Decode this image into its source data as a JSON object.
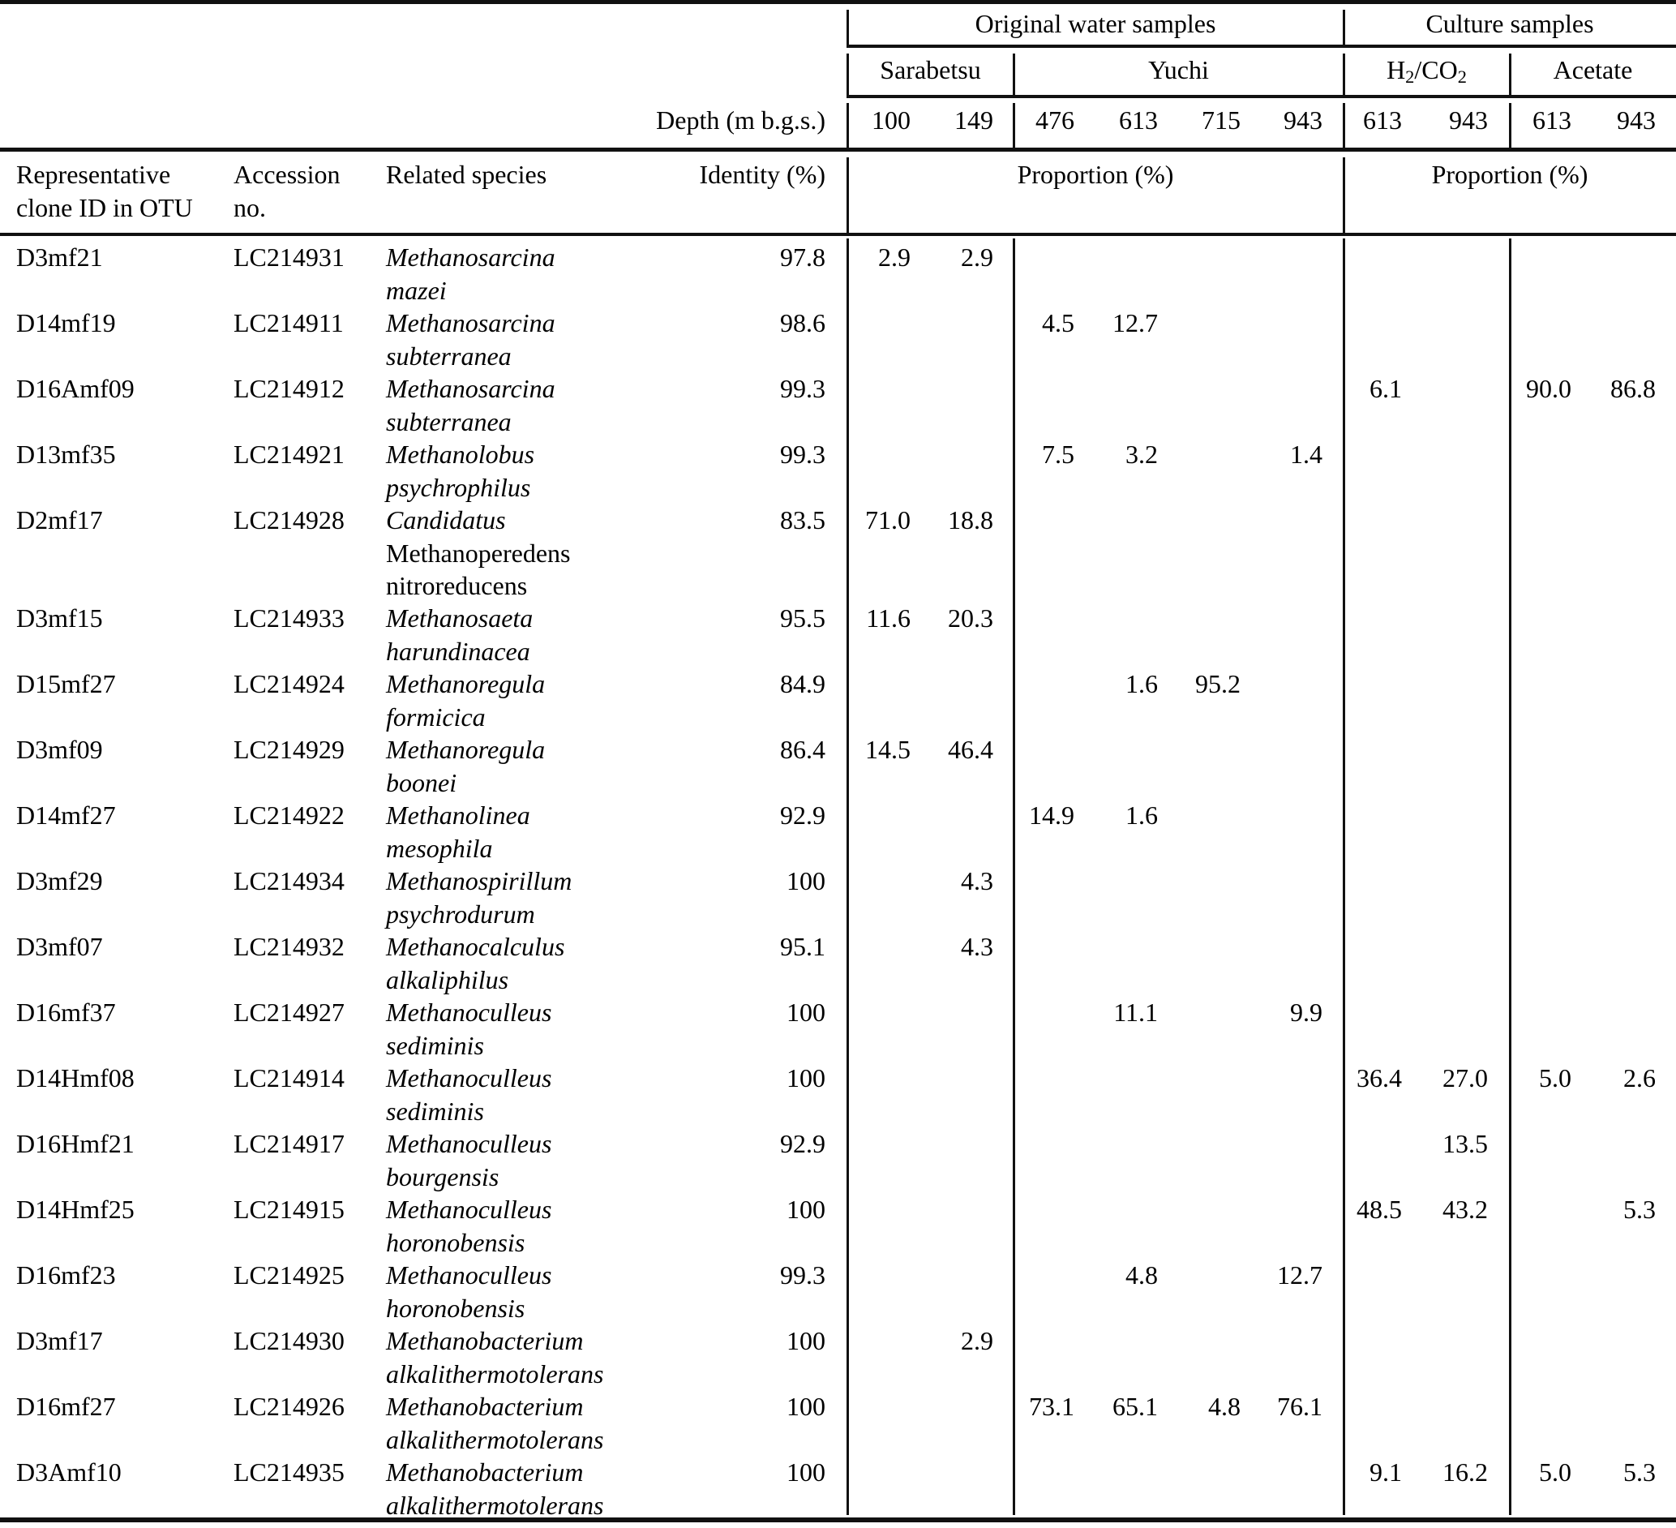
{
  "table": {
    "groups": {
      "water": "Original water samples",
      "culture": "Culture samples"
    },
    "subgroups": [
      {
        "label": "Sarabetsu"
      },
      {
        "label": "Yuchi"
      },
      {
        "label": "H2/CO2",
        "parts": [
          [
            "H",
            false
          ],
          [
            "2",
            true
          ],
          [
            "/CO",
            false
          ],
          [
            "2",
            true
          ]
        ]
      },
      {
        "label": "Acetate"
      }
    ],
    "depth_label": "Depth (m b.g.s.)",
    "depths": [
      "100",
      "149",
      "476",
      "613",
      "715",
      "943",
      "613",
      "943",
      "613",
      "943"
    ],
    "headers": {
      "clone_line1": "Representative",
      "clone_line2": "clone ID in OTU",
      "accession_line1": "Accession",
      "accession_line2": "no.",
      "species": "Related species",
      "identity": "Identity (%)",
      "proportion_water": "Proportion (%)",
      "proportion_culture": "Proportion (%)"
    },
    "rows": [
      {
        "id": "D3mf21",
        "accession": "LC214931",
        "species": [
          [
            "Methanosarcina",
            1
          ],
          [
            "mazei",
            1
          ]
        ],
        "identity": "97.8",
        "values": [
          "2.9",
          "2.9",
          "",
          "",
          "",
          "",
          "",
          "",
          "",
          ""
        ]
      },
      {
        "id": "D14mf19",
        "accession": "LC214911",
        "species": [
          [
            "Methanosarcina",
            1
          ],
          [
            "subterranea",
            1
          ]
        ],
        "identity": "98.6",
        "values": [
          "",
          "",
          "4.5",
          "12.7",
          "",
          "",
          "",
          "",
          "",
          ""
        ]
      },
      {
        "id": "D16Amf09",
        "accession": "LC214912",
        "species": [
          [
            "Methanosarcina",
            1
          ],
          [
            "subterranea",
            1
          ]
        ],
        "identity": "99.3",
        "values": [
          "",
          "",
          "",
          "",
          "",
          "",
          "6.1",
          "",
          "90.0",
          "86.8"
        ]
      },
      {
        "id": "D13mf35",
        "accession": "LC214921",
        "species": [
          [
            "Methanolobus",
            1
          ],
          [
            "psychrophilus",
            1
          ]
        ],
        "identity": "99.3",
        "values": [
          "",
          "",
          "7.5",
          "3.2",
          "",
          "1.4",
          "",
          "",
          "",
          ""
        ]
      },
      {
        "id": "D2mf17",
        "accession": "LC214928",
        "species": [
          [
            "Candidatus",
            1
          ],
          [
            "Methanoperedens",
            0
          ],
          [
            "nitroreducens",
            0
          ]
        ],
        "identity": "83.5",
        "values": [
          "71.0",
          "18.8",
          "",
          "",
          "",
          "",
          "",
          "",
          "",
          ""
        ]
      },
      {
        "id": "D3mf15",
        "accession": "LC214933",
        "species": [
          [
            "Methanosaeta",
            1
          ],
          [
            "harundinacea",
            1
          ]
        ],
        "identity": "95.5",
        "values": [
          "11.6",
          "20.3",
          "",
          "",
          "",
          "",
          "",
          "",
          "",
          ""
        ]
      },
      {
        "id": "D15mf27",
        "accession": "LC214924",
        "species": [
          [
            "Methanoregula",
            1
          ],
          [
            "formicica",
            1
          ]
        ],
        "identity": "84.9",
        "values": [
          "",
          "",
          "",
          "1.6",
          "95.2",
          "",
          "",
          "",
          "",
          ""
        ]
      },
      {
        "id": "D3mf09",
        "accession": "LC214929",
        "species": [
          [
            "Methanoregula",
            1
          ],
          [
            "boonei",
            1
          ]
        ],
        "identity": "86.4",
        "values": [
          "14.5",
          "46.4",
          "",
          "",
          "",
          "",
          "",
          "",
          "",
          ""
        ]
      },
      {
        "id": "D14mf27",
        "accession": "LC214922",
        "species": [
          [
            "Methanolinea",
            1
          ],
          [
            "mesophila",
            1
          ]
        ],
        "identity": "92.9",
        "values": [
          "",
          "",
          "14.9",
          "1.6",
          "",
          "",
          "",
          "",
          "",
          ""
        ]
      },
      {
        "id": "D3mf29",
        "accession": "LC214934",
        "species": [
          [
            "Methanospirillum",
            1
          ],
          [
            "psychrodurum",
            1
          ]
        ],
        "identity": "100",
        "values": [
          "",
          "4.3",
          "",
          "",
          "",
          "",
          "",
          "",
          "",
          ""
        ]
      },
      {
        "id": "D3mf07",
        "accession": "LC214932",
        "species": [
          [
            "Methanocalculus",
            1
          ],
          [
            "alkaliphilus",
            1
          ]
        ],
        "identity": "95.1",
        "values": [
          "",
          "4.3",
          "",
          "",
          "",
          "",
          "",
          "",
          "",
          ""
        ]
      },
      {
        "id": "D16mf37",
        "accession": "LC214927",
        "species": [
          [
            "Methanoculleus",
            1
          ],
          [
            "sediminis",
            1
          ]
        ],
        "identity": "100",
        "values": [
          "",
          "",
          "",
          "11.1",
          "",
          "9.9",
          "",
          "",
          "",
          ""
        ]
      },
      {
        "id": "D14Hmf08",
        "accession": "LC214914",
        "species": [
          [
            "Methanoculleus",
            1
          ],
          [
            "sediminis",
            1
          ]
        ],
        "identity": "100",
        "values": [
          "",
          "",
          "",
          "",
          "",
          "",
          "36.4",
          "27.0",
          "5.0",
          "2.6"
        ]
      },
      {
        "id": "D16Hmf21",
        "accession": "LC214917",
        "species": [
          [
            "Methanoculleus",
            1
          ],
          [
            "bourgensis",
            1
          ]
        ],
        "identity": "92.9",
        "values": [
          "",
          "",
          "",
          "",
          "",
          "",
          "",
          "13.5",
          "",
          ""
        ]
      },
      {
        "id": "D14Hmf25",
        "accession": "LC214915",
        "species": [
          [
            "Methanoculleus",
            1
          ],
          [
            "horonobensis",
            1
          ]
        ],
        "identity": "100",
        "values": [
          "",
          "",
          "",
          "",
          "",
          "",
          "48.5",
          "43.2",
          "",
          "5.3"
        ]
      },
      {
        "id": "D16mf23",
        "accession": "LC214925",
        "species": [
          [
            "Methanoculleus",
            1
          ],
          [
            "horonobensis",
            1
          ]
        ],
        "identity": "99.3",
        "values": [
          "",
          "",
          "",
          "4.8",
          "",
          "12.7",
          "",
          "",
          "",
          ""
        ]
      },
      {
        "id": "D3mf17",
        "accession": "LC214930",
        "species": [
          [
            "Methanobacterium",
            1
          ],
          [
            "alkalithermotolerans",
            1
          ]
        ],
        "identity": "100",
        "values": [
          "",
          "2.9",
          "",
          "",
          "",
          "",
          "",
          "",
          "",
          ""
        ]
      },
      {
        "id": "D16mf27",
        "accession": "LC214926",
        "species": [
          [
            "Methanobacterium",
            1
          ],
          [
            "alkalithermotolerans",
            1
          ]
        ],
        "identity": "100",
        "values": [
          "",
          "",
          "73.1",
          "65.1",
          "4.8",
          "76.1",
          "",
          "",
          "",
          ""
        ]
      },
      {
        "id": "D3Amf10",
        "accession": "LC214935",
        "species": [
          [
            "Methanobacterium",
            1
          ],
          [
            "alkalithermotolerans",
            1
          ]
        ],
        "identity": "100",
        "values": [
          "",
          "",
          "",
          "",
          "",
          "",
          "9.1",
          "16.2",
          "5.0",
          "5.3"
        ]
      }
    ]
  }
}
